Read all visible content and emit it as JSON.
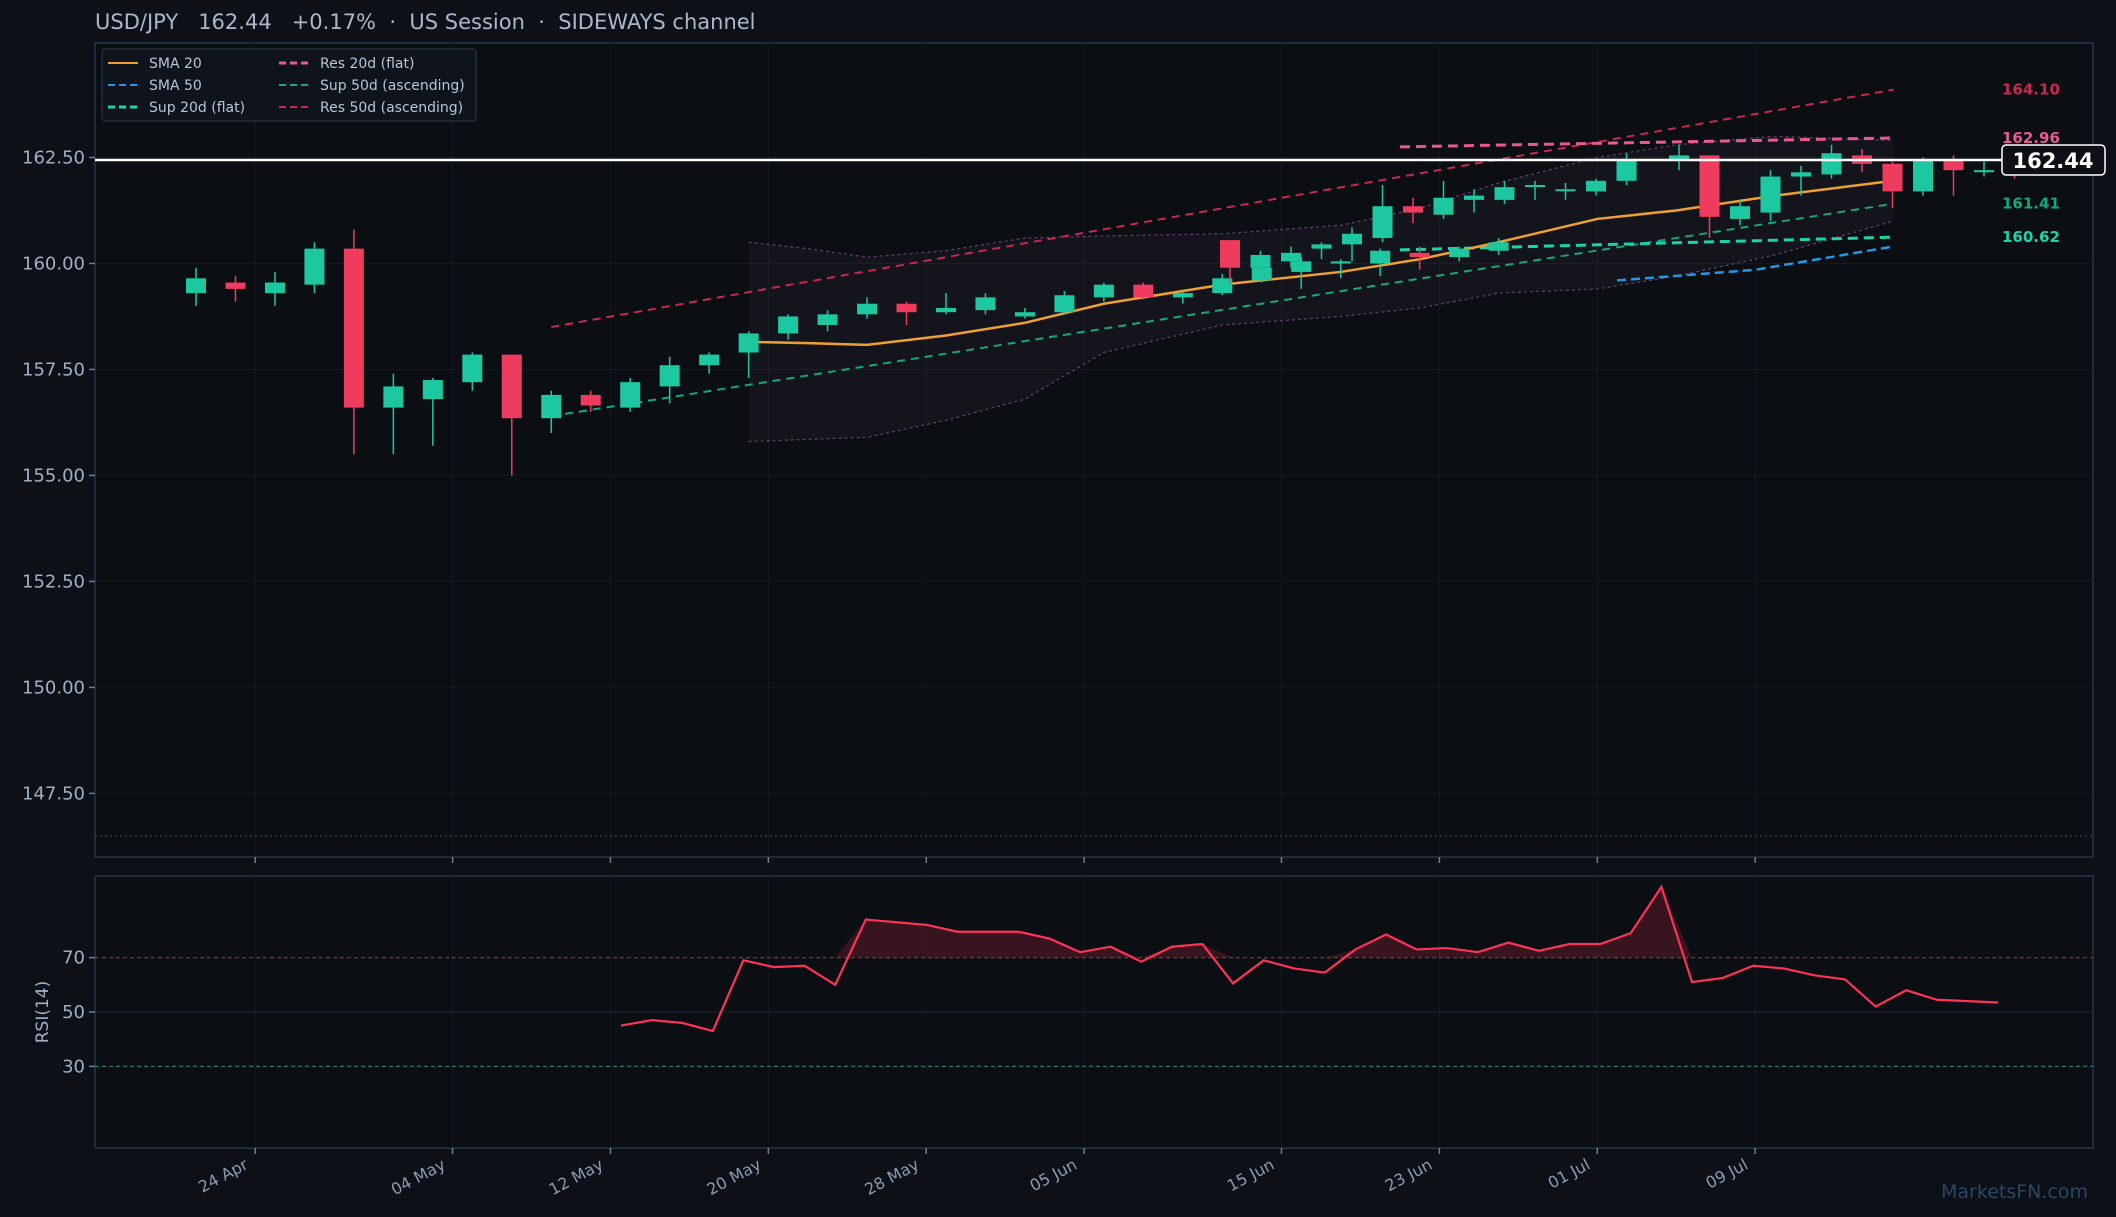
{
  "title": "USD/JPY   162.44   +0.17%  ·  US Session  ·  SIDEWAYS channel",
  "watermark": "MarketsFN.com",
  "colors": {
    "background": "#0d1016",
    "up": "#1dc8a0",
    "down": "#ef3b5e",
    "sma20": "#f0a030",
    "sma50": "#1e9ae8",
    "sup_flat": "#18d6a6",
    "res_flat": "#e85a8f",
    "sup_asc": "#14a87a",
    "res_asc": "#c8284f",
    "band": "#7b4a86",
    "rsi": "#ff3355",
    "price_line": "#ffffff"
  },
  "chart_data": {
    "type": "candlestick",
    "price_axis": {
      "ylim": [
        146.0,
        165.2
      ],
      "ticks": [
        "147.50",
        "150.00",
        "152.50",
        "155.00",
        "157.50",
        "160.00",
        "162.50"
      ]
    },
    "time_axis": {
      "start": "2024-04-21",
      "end": "2024-07-21",
      "ticks": [
        "24 Apr",
        "04 May",
        "12 May",
        "20 May",
        "28 May",
        "05 Jun",
        "15 Jun",
        "23 Jun",
        "01 Jul",
        "09 Jul"
      ],
      "tick_dates": [
        "2024-04-24",
        "2024-05-04",
        "2024-05-12",
        "2024-05-20",
        "2024-05-28",
        "2024-06-05",
        "2024-06-15",
        "2024-06-23",
        "2024-07-01",
        "2024-07-09"
      ]
    },
    "legend": {
      "placement": "top-left",
      "entries": [
        {
          "label": "SMA 20",
          "key": "sma20",
          "style": "solid"
        },
        {
          "label": "SMA 50",
          "key": "sma50",
          "style": "dash"
        },
        {
          "label": "Sup 20d (flat)",
          "key": "sup_flat",
          "style": "dash"
        },
        {
          "label": "Res 20d (flat)",
          "key": "res_flat",
          "style": "dash"
        },
        {
          "label": "Sup 50d (ascending)",
          "key": "sup_asc",
          "style": "dash"
        },
        {
          "label": "Res 50d (ascending)",
          "key": "res_asc",
          "style": "dash"
        }
      ]
    },
    "current_price": {
      "value": 162.44,
      "label": "162.44"
    },
    "level_labels": [
      {
        "label": "164.10",
        "value": 164.1,
        "key": "res_asc"
      },
      {
        "label": "162.96",
        "value": 162.96,
        "key": "res_flat"
      },
      {
        "label": "161.41",
        "value": 161.41,
        "key": "sup_asc"
      },
      {
        "label": "160.62",
        "value": 160.62,
        "key": "sup_flat"
      }
    ],
    "lines": {
      "res_asc": [
        [
          "2024-05-09",
          158.5
        ],
        [
          "2024-07-16",
          164.1
        ]
      ],
      "sup_asc": [
        [
          "2024-05-09",
          156.4
        ],
        [
          "2024-07-16",
          161.41
        ]
      ],
      "res_flat": [
        [
          "2024-06-21",
          162.75
        ],
        [
          "2024-07-16",
          162.96
        ]
      ],
      "sup_flat": [
        [
          "2024-06-21",
          160.32
        ],
        [
          "2024-07-16",
          160.62
        ]
      ],
      "sma50": [
        [
          "2024-07-02",
          159.6
        ],
        [
          "2024-07-09",
          159.85
        ],
        [
          "2024-07-16",
          160.4
        ]
      ],
      "sma20": [
        [
          "2024-05-19",
          158.15
        ],
        [
          "2024-05-22",
          158.12
        ],
        [
          "2024-05-25",
          158.08
        ],
        [
          "2024-05-29",
          158.3
        ],
        [
          "2024-06-02",
          158.6
        ],
        [
          "2024-06-06",
          159.05
        ],
        [
          "2024-06-12",
          159.5
        ],
        [
          "2024-06-18",
          159.8
        ],
        [
          "2024-06-22",
          160.1
        ],
        [
          "2024-06-26",
          160.5
        ],
        [
          "2024-07-01",
          161.05
        ],
        [
          "2024-07-05",
          161.25
        ],
        [
          "2024-07-10",
          161.6
        ],
        [
          "2024-07-16",
          161.95
        ]
      ],
      "band_upper": [
        [
          "2024-05-19",
          160.5
        ],
        [
          "2024-05-22",
          160.35
        ],
        [
          "2024-05-25",
          160.15
        ],
        [
          "2024-05-29",
          160.3
        ],
        [
          "2024-06-02",
          160.6
        ],
        [
          "2024-06-06",
          160.65
        ],
        [
          "2024-06-12",
          160.7
        ],
        [
          "2024-06-18",
          160.9
        ],
        [
          "2024-06-22",
          161.3
        ],
        [
          "2024-06-26",
          161.9
        ],
        [
          "2024-07-01",
          162.5
        ],
        [
          "2024-07-05",
          162.8
        ],
        [
          "2024-07-10",
          163.0
        ],
        [
          "2024-07-16",
          162.9
        ]
      ],
      "band_lower": [
        [
          "2024-05-19",
          155.8
        ],
        [
          "2024-05-22",
          155.85
        ],
        [
          "2024-05-25",
          155.9
        ],
        [
          "2024-05-29",
          156.3
        ],
        [
          "2024-06-02",
          156.8
        ],
        [
          "2024-06-06",
          157.9
        ],
        [
          "2024-06-12",
          158.55
        ],
        [
          "2024-06-18",
          158.75
        ],
        [
          "2024-06-22",
          158.95
        ],
        [
          "2024-06-26",
          159.3
        ],
        [
          "2024-07-01",
          159.4
        ],
        [
          "2024-07-05",
          159.7
        ],
        [
          "2024-07-10",
          160.2
        ],
        [
          "2024-07-16",
          161.0
        ]
      ]
    },
    "candles": [
      [
        "2024-04-21",
        159.3,
        159.9,
        159.0,
        159.65
      ],
      [
        "2024-04-23",
        159.55,
        159.7,
        159.1,
        159.4
      ],
      [
        "2024-04-25",
        159.3,
        159.8,
        159.0,
        159.55
      ],
      [
        "2024-04-27",
        159.5,
        160.5,
        159.3,
        160.35
      ],
      [
        "2024-04-29",
        160.35,
        160.8,
        155.5,
        156.6
      ],
      [
        "2024-05-01",
        156.6,
        157.4,
        155.5,
        157.1
      ],
      [
        "2024-05-03",
        156.8,
        157.3,
        155.7,
        157.25
      ],
      [
        "2024-05-05",
        157.2,
        157.9,
        157.0,
        157.85
      ],
      [
        "2024-05-07",
        157.85,
        157.85,
        155.0,
        156.35
      ],
      [
        "2024-05-09",
        156.35,
        157.0,
        156.0,
        156.9
      ],
      [
        "2024-05-11",
        156.9,
        157.0,
        156.5,
        156.65
      ],
      [
        "2024-05-13",
        156.6,
        157.3,
        156.5,
        157.2
      ],
      [
        "2024-05-15",
        157.1,
        157.8,
        156.7,
        157.6
      ],
      [
        "2024-05-17",
        157.6,
        157.9,
        157.4,
        157.85
      ],
      [
        "2024-05-19",
        157.9,
        158.4,
        157.3,
        158.35
      ],
      [
        "2024-05-21",
        158.35,
        158.8,
        158.2,
        158.75
      ],
      [
        "2024-05-23",
        158.55,
        158.9,
        158.4,
        158.8
      ],
      [
        "2024-05-25",
        158.8,
        159.2,
        158.7,
        159.05
      ],
      [
        "2024-05-27",
        159.05,
        159.1,
        158.55,
        158.85
      ],
      [
        "2024-05-29",
        158.85,
        159.3,
        158.8,
        158.95
      ],
      [
        "2024-05-31",
        158.9,
        159.3,
        158.8,
        159.2
      ],
      [
        "2024-06-02",
        158.75,
        158.95,
        158.7,
        158.85
      ],
      [
        "2024-06-04",
        158.85,
        159.35,
        158.8,
        159.25
      ],
      [
        "2024-06-06",
        159.2,
        159.55,
        159.1,
        159.5
      ],
      [
        "2024-06-08",
        159.5,
        159.55,
        159.15,
        159.2
      ],
      [
        "2024-06-10",
        159.2,
        159.35,
        159.05,
        159.3
      ],
      [
        "2024-06-12",
        159.3,
        159.75,
        159.25,
        159.65
      ],
      [
        "2024-06-14",
        159.6,
        160.0,
        159.55,
        159.9
      ],
      [
        "2024-06-16",
        159.8,
        160.15,
        159.4,
        160.05
      ],
      [
        "2024-06-18",
        160.0,
        160.1,
        159.65,
        160.05
      ],
      [
        "2024-06-20",
        160.0,
        160.35,
        159.7,
        160.3
      ],
      [
        "2024-06-22",
        160.25,
        160.4,
        159.85,
        160.15
      ],
      [
        "2024-06-24",
        160.15,
        160.4,
        160.05,
        160.35
      ],
      [
        "2024-06-26",
        160.3,
        160.6,
        160.2,
        160.5
      ],
      [
        "2024-06-28",
        160.55,
        160.55,
        159.55,
        159.9
      ],
      [
        "2024-06-30",
        159.9,
        160.3,
        159.85,
        160.2
      ],
      [
        "2024-07-02",
        160.05,
        160.4,
        159.9,
        160.25
      ],
      [
        "2024-07-04",
        160.35,
        160.5,
        160.1,
        160.45
      ],
      [
        "2024-07-06",
        160.45,
        160.85,
        160.05,
        160.7
      ],
      [
        "2024-07-08",
        160.6,
        161.85,
        160.5,
        161.35
      ],
      [
        "2024-07-10",
        161.35,
        161.55,
        160.95,
        161.2
      ],
      [
        "2024-07-12",
        161.15,
        161.95,
        161.05,
        161.55
      ],
      [
        "2024-07-14",
        161.5,
        161.75,
        161.2,
        161.6
      ],
      [
        "2024-07-16",
        161.5,
        161.95,
        161.4,
        161.8
      ],
      [
        "2024-07-18",
        161.85,
        161.95,
        161.5,
        161.85
      ],
      [
        "2024-07-20",
        161.75,
        161.9,
        161.5,
        161.75
      ],
      [
        "2024-07-22",
        161.7,
        162.0,
        161.6,
        161.95
      ],
      [
        "2024-07-24",
        161.95,
        162.6,
        161.85,
        162.45
      ]
    ],
    "candles_late": [
      [
        "2024-06-30",
        162.45,
        162.8,
        162.2,
        162.55
      ],
      [
        "2024-07-02",
        162.55,
        162.55,
        160.6,
        161.1
      ],
      [
        "2024-07-04",
        161.05,
        161.5,
        160.9,
        161.35
      ],
      [
        "2024-07-06",
        161.2,
        162.2,
        161.0,
        162.05
      ],
      [
        "2024-07-08",
        162.05,
        162.3,
        161.6,
        162.15
      ],
      [
        "2024-07-10",
        162.1,
        162.8,
        162.0,
        162.6
      ],
      [
        "2024-07-12",
        162.55,
        162.7,
        162.15,
        162.35
      ],
      [
        "2024-07-14",
        162.35,
        162.4,
        161.3,
        161.7
      ],
      [
        "2024-07-16",
        161.7,
        162.5,
        161.6,
        162.45
      ],
      [
        "2024-07-18",
        162.45,
        162.55,
        161.6,
        162.2
      ],
      [
        "2024-07-20",
        162.2,
        162.4,
        162.05,
        162.2
      ],
      [
        "2024-07-21",
        162.2,
        162.3,
        162.0,
        162.15
      ]
    ],
    "rsi": {
      "label": "RSI(14)",
      "ylim": [
        0,
        100
      ],
      "ticks": [
        "30",
        "50",
        "70"
      ],
      "overbought": 70,
      "oversold": 30,
      "values": [
        45,
        47,
        46,
        43,
        69,
        66.5,
        67,
        60,
        84,
        83,
        82,
        79.5,
        79.5,
        79.5,
        77,
        72,
        74,
        68.5,
        74,
        75,
        60.5,
        69,
        66,
        64.5,
        73,
        78.5,
        73,
        73.5,
        72,
        75.5,
        72.5,
        75,
        75,
        79,
        96,
        61,
        62.5,
        67,
        66,
        63.5,
        62,
        52,
        58,
        54.5,
        54,
        53.5
      ]
    }
  }
}
